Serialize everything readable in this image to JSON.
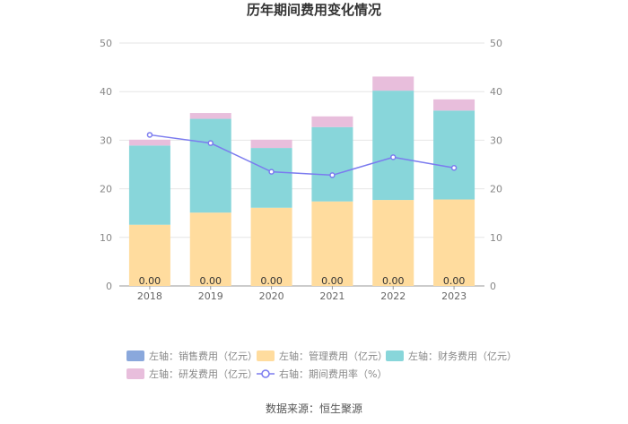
{
  "chart_data": {
    "type": "bar",
    "stacked": true,
    "title": "历年期间费用变化情况",
    "categories": [
      "2018",
      "2019",
      "2020",
      "2021",
      "2022",
      "2023"
    ],
    "left_axis": {
      "min": 0,
      "max": 50,
      "ticks": [
        0,
        10,
        20,
        30,
        40,
        50
      ]
    },
    "right_axis": {
      "min": 0,
      "max": 50,
      "ticks": [
        0,
        10,
        20,
        30,
        40,
        50
      ]
    },
    "series": [
      {
        "name": "左轴：销售费用（亿元）",
        "axis": "left",
        "kind": "bar",
        "color": "#8AA8DC",
        "values": [
          0.0,
          0.0,
          0.0,
          0.0,
          0.0,
          0.0
        ],
        "labels": [
          "0.00",
          "0.00",
          "0.00",
          "0.00",
          "0.00",
          "0.00"
        ]
      },
      {
        "name": "左轴：管理费用（亿元）",
        "axis": "left",
        "kind": "bar",
        "color": "#FFDC9E",
        "values": [
          12.6,
          15.1,
          16.1,
          17.4,
          17.7,
          17.8
        ]
      },
      {
        "name": "左轴：财务费用（亿元）",
        "axis": "left",
        "kind": "bar",
        "color": "#88D6DA",
        "values": [
          16.3,
          19.3,
          12.3,
          15.3,
          22.5,
          18.3
        ]
      },
      {
        "name": "左轴：研发费用（亿元）",
        "axis": "left",
        "kind": "bar",
        "color": "#E8BEDC",
        "values": [
          1.2,
          1.2,
          1.7,
          2.2,
          2.9,
          2.3
        ]
      },
      {
        "name": "右轴：期间费用率（%）",
        "axis": "right",
        "kind": "line",
        "color": "#7B7BEF",
        "values": [
          31.1,
          29.4,
          23.5,
          22.8,
          26.5,
          24.3
        ]
      }
    ],
    "source": "数据来源：恒生聚源"
  }
}
